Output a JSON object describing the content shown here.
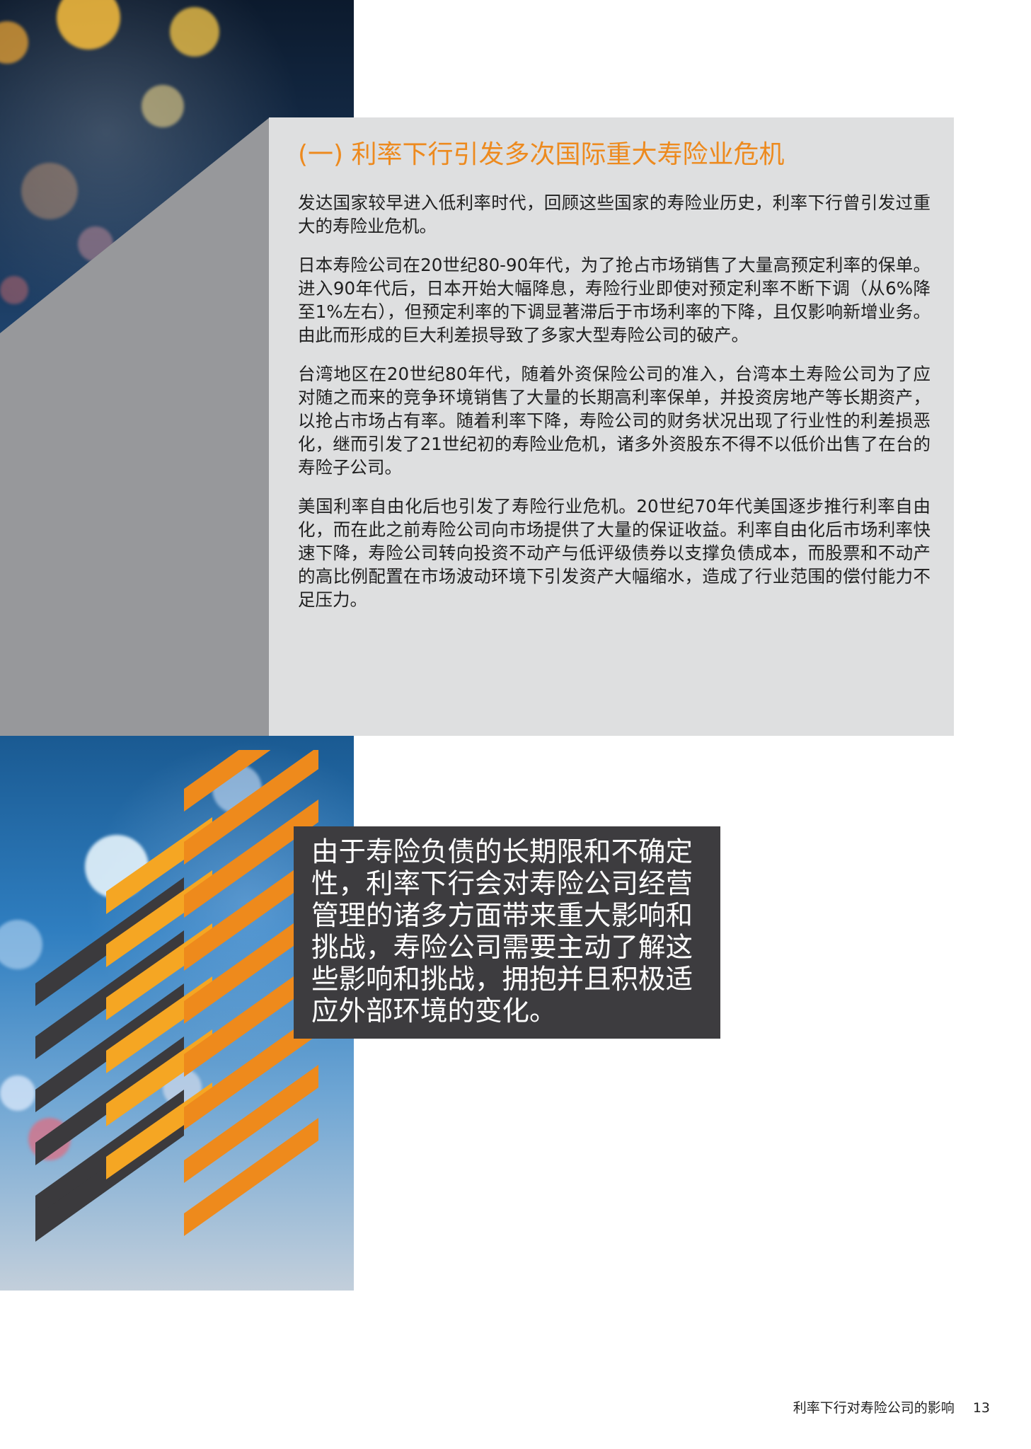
{
  "section": {
    "heading": "(一) 利率下行引发多次国际重大寿险业危机",
    "paragraphs": [
      "发达国家较早进入低利率时代，回顾这些国家的寿险业历史，利率下行曾引发过重大的寿险业危机。",
      "日本寿险公司在20世纪80-90年代，为了抢占市场销售了大量高预定利率的保单。进入90年代后，日本开始大幅降息，寿险行业即使对预定利率不断下调（从6%降至1%左右），但预定利率的下调显著滞后于市场利率的下降，且仅影响新增业务。由此而形成的巨大利差损导致了多家大型寿险公司的破产。",
      "台湾地区在20世纪80年代，随着外资保险公司的准入，台湾本土寿险公司为了应对随之而来的竞争环境销售了大量的长期高利率保单，并投资房地产等长期资产，以抢占市场占有率。随着利率下降，寿险公司的财务状况出现了行业性的利差损恶化，继而引发了21世纪初的寿险业危机，诸多外资股东不得不以低价出售了在台的寿险子公司。",
      "美国利率自由化后也引发了寿险行业危机。20世纪70年代美国逐步推行利率自由化，而在此之前寿险公司向市场提供了大量的保证收益。利率自由化后市场利率快速下降，寿险公司转向投资不动产与低评级债券以支撑负债成本，而股票和不动产的高比例配置在市场波动环境下引发资产大幅缩水，造成了行业范围的偿付能力不足压力。"
    ]
  },
  "callout": {
    "text": "由于寿险负债的长期限和不确定性，利率下行会对寿险公司经营管理的诸多方面带来重大影响和挑战，寿险公司需要主动了解这些影响和挑战，拥抱并且积极适应外部环境的变化。"
  },
  "footer": {
    "title": "利率下行对寿险公司的影响",
    "page_number": "13"
  },
  "colors": {
    "accent": "#ed8a1e",
    "panel_gray": "#dedfe0",
    "triangle_gray": "#97989b",
    "callout_bg": "#3d3c3f"
  }
}
